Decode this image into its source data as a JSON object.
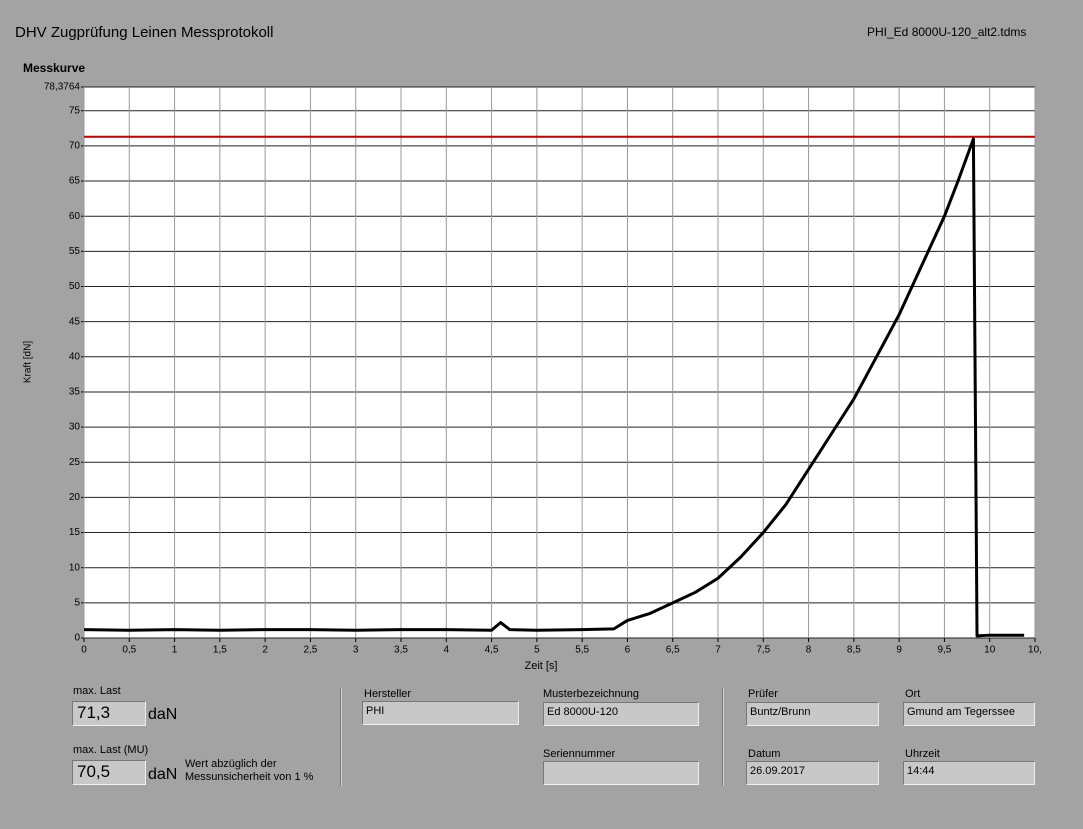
{
  "header": {
    "title": "DHV Zugprüfung Leinen Messprotokoll",
    "file": "PHI_Ed 8000U-120_alt2.tdms"
  },
  "chart_data": {
    "type": "line",
    "title": "Messkurve",
    "x_label": "Zeit [s]",
    "y_label": "Kraft [dN]",
    "x": [
      0,
      0.5,
      1,
      1.5,
      2,
      2.5,
      3,
      3.5,
      4,
      4.5,
      4.6,
      4.7,
      5,
      5.5,
      5.85,
      6,
      6.25,
      6.5,
      6.75,
      7,
      7.25,
      7.5,
      7.75,
      8,
      8.25,
      8.5,
      8.75,
      9,
      9.25,
      9.5,
      9.65,
      9.82,
      9.86,
      10,
      10.38
    ],
    "series": [
      {
        "color": "#000000",
        "values": [
          1.2,
          1.1,
          1.2,
          1.1,
          1.2,
          1.2,
          1.1,
          1.2,
          1.2,
          1.1,
          2.2,
          1.2,
          1.1,
          1.2,
          1.3,
          2.5,
          3.5,
          5,
          6.5,
          8.5,
          11.5,
          15,
          19,
          24,
          29,
          34,
          40,
          46,
          53,
          60,
          65,
          71,
          0.3,
          0.4,
          0.4
        ]
      }
    ],
    "reference_line": {
      "value": 71.3,
      "color": "#c00000"
    },
    "xlim": [
      0,
      10.5
    ],
    "xticks": [
      0,
      {
        "value": 0.5,
        "label": "0,5"
      },
      1,
      {
        "value": 1.5,
        "label": "1,5"
      },
      2,
      {
        "value": 2.5,
        "label": "2,5"
      },
      3,
      {
        "value": 3.5,
        "label": "3,5"
      },
      4,
      {
        "value": 4.5,
        "label": "4,5"
      },
      5,
      {
        "value": 5.5,
        "label": "5,5"
      },
      6,
      {
        "value": 6.5,
        "label": "6,5"
      },
      7,
      {
        "value": 7.5,
        "label": "7,5"
      },
      8,
      {
        "value": 8.5,
        "label": "8,5"
      },
      9,
      {
        "value": 9.5,
        "label": "9,5"
      },
      10,
      {
        "value": 10.5,
        "label": "10,"
      }
    ],
    "ylim": [
      0,
      78.3764
    ],
    "yticks": [
      0,
      5,
      10,
      15,
      20,
      25,
      30,
      35,
      40,
      45,
      50,
      55,
      60,
      65,
      70,
      75,
      {
        "value": 78.3764,
        "label": "78,3764"
      }
    ],
    "grid": true
  },
  "fields": {
    "max_last": {
      "label": "max. Last",
      "value": "71,3",
      "unit": "daN"
    },
    "max_last_mu": {
      "label": "max. Last (MU)",
      "value": "70,5",
      "unit": "daN",
      "note": [
        "Wert abzüglich der",
        "Messunsicherheit von 1 %"
      ]
    },
    "hersteller": {
      "label": "Hersteller",
      "value": "PHI"
    },
    "muster": {
      "label": "Musterbezeichnung",
      "value": "Ed 8000U-120"
    },
    "serie": {
      "label": "Seriennummer"
    },
    "pruefer": {
      "label": "Prüfer",
      "value": "Buntz/Brunn"
    },
    "ort": {
      "label": "Ort",
      "value": "Gmund am Tegerssee"
    },
    "datum": {
      "label": "Datum",
      "value": "26.09.2017"
    },
    "uhrzeit": {
      "label": "Uhrzeit",
      "value": "14:44"
    }
  }
}
